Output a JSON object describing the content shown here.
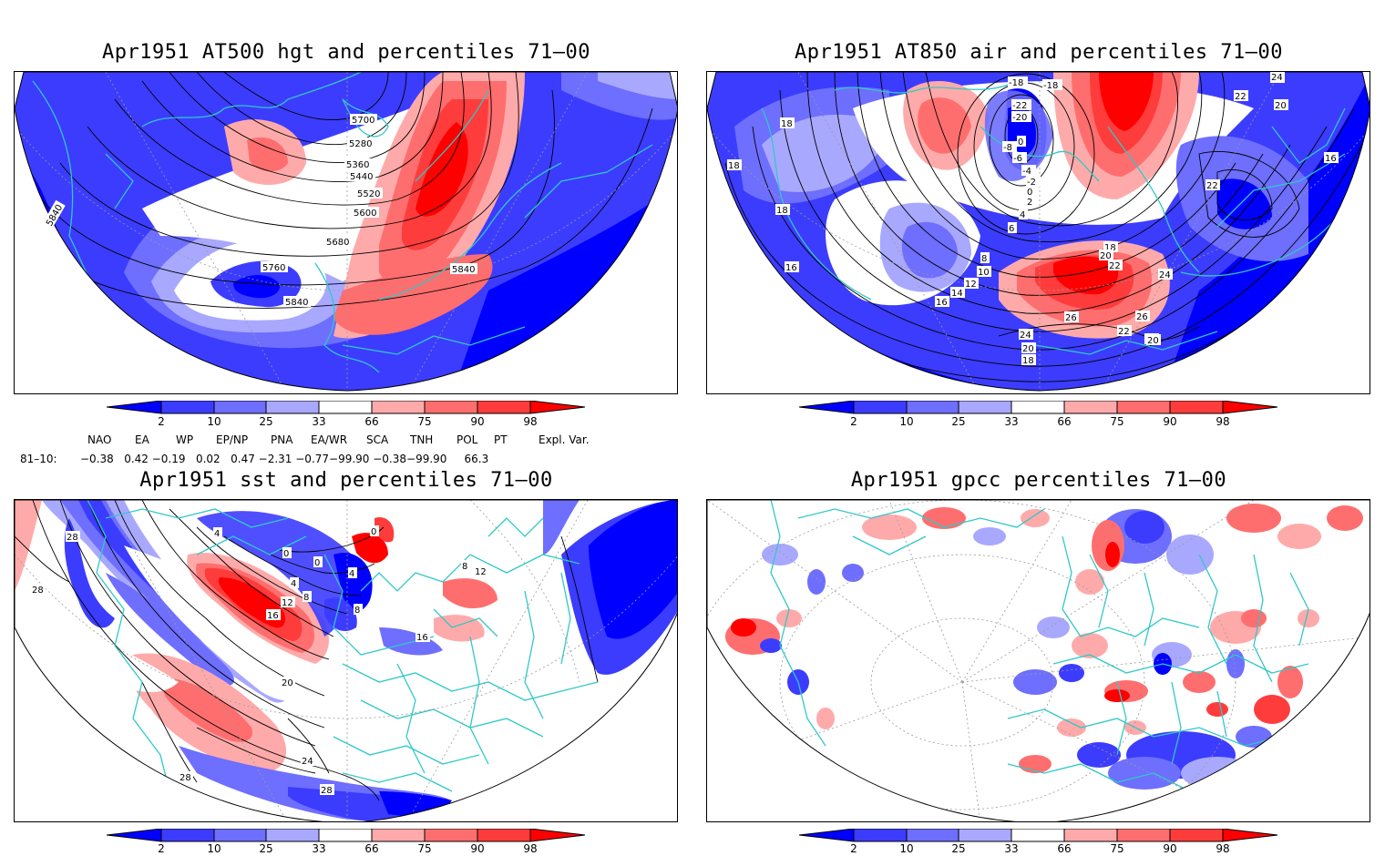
{
  "panels": {
    "p1": {
      "title": "Apr1951 AT500 hgt and percentiles 71–00",
      "contour_labels": [
        "5700",
        "5280",
        "5360",
        "5440",
        "5520",
        "5600",
        "5680",
        "5760",
        "5840",
        "5840",
        "5840"
      ]
    },
    "p2": {
      "title": "Apr1951 AT850 air and percentiles 71–00",
      "contour_labels": [
        "-18",
        "-18",
        "-22",
        "-20",
        "-8",
        "0",
        "-6",
        "-4",
        "-2",
        "0",
        "2",
        "4",
        "6",
        "8",
        "10",
        "12",
        "14",
        "16",
        "18",
        "18",
        "20",
        "20",
        "22",
        "22",
        "24",
        "24",
        "26",
        "26",
        "20",
        "18",
        "20",
        "16",
        "18",
        "18",
        "16",
        "22",
        "22",
        "20",
        "24"
      ]
    },
    "p3": {
      "title": "Apr1951 sst and percentiles 71–00",
      "contour_labels": [
        "28",
        "28",
        "4",
        "0",
        "0",
        "4",
        "8",
        "12",
        "16",
        "20",
        "24",
        "28",
        "28",
        "8",
        "12",
        "16",
        "8",
        "0",
        "4"
      ]
    },
    "p4": {
      "title": "Apr1951 gpcc percentiles 71–00"
    }
  },
  "colorbar": {
    "labels": [
      "2",
      "10",
      "25",
      "33",
      "66",
      "75",
      "90",
      "98"
    ],
    "colors": {
      "blue_dark": "#0000ff",
      "blue_mid": "#3c3cff",
      "blue_light": "#6e6eff",
      "blue_pale": "#a8a8ff",
      "red_pale": "#ffaaaa",
      "red_light": "#ff6e6e",
      "red_mid": "#ff3c3c",
      "red_dark": "#ff0000"
    }
  },
  "indices": {
    "headers": [
      "NAO",
      "EA",
      "WP",
      "EP/NP",
      "PNA",
      "EA/WR",
      "SCA",
      "TNH",
      "POL",
      "PT",
      "Expl. Var."
    ],
    "row_label": "81–10:",
    "values": "−0.38   0.42 −0.19   0.02   0.47 −2.31 −0.77−99.90 −0.38−99.90     66.3"
  },
  "map_colors": {
    "coast": "#30c8c8",
    "contour": "#000000",
    "grid": "#9a9a9a"
  }
}
